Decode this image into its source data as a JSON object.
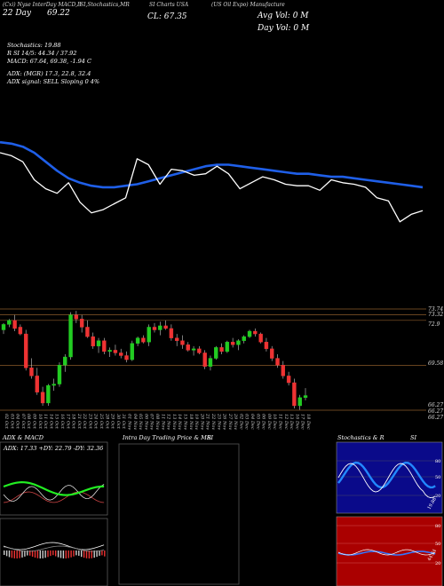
{
  "header": {
    "line1": [
      "(Cxi) Nyse InterDay MACD,B",
      "SI,Stochastics,MR",
      "SI Charts USA",
      "(US Oil Expo) Manufacture"
    ],
    "date_label": "22 Day",
    "price_label": "69.22",
    "close_label": "CL: 67.35",
    "avg_vol": "Avg Vol: 0   M",
    "day_vol": "Day Vol: 0   M"
  },
  "indicators": {
    "stochastics": "Stochastics: 19.88",
    "rsi": "R                    SI 14/5: 44.34  / 37.92",
    "macd": "MACD: 67.64,  69.38,  -1.94   C",
    "adx": "ADX:                    (MGR) 17.3,  22.8,  32.4",
    "adx_signal": "ADX  signal: SELL  Sloping 0 4%"
  },
  "price_axis": {
    "labels": [
      "73.74",
      "73.32",
      "72.9",
      "69.58",
      "66.27",
      "66.27",
      "66.27"
    ]
  },
  "dates": [
    "02 Oct",
    "03 Oct",
    "04 Oct",
    "07 Oct",
    "08 Oct",
    "09 Oct",
    "10 Oct",
    "11 Oct",
    "14 Oct",
    "15 Oct",
    "16 Oct",
    "17 Oct",
    "18 Oct",
    "21 Oct",
    "22 Oct",
    "23 Oct",
    "24 Oct",
    "25 Oct",
    "28 Oct",
    "29 Oct",
    "30 Oct",
    "31 Oct",
    "01 Nov",
    "04 Nov",
    "05 Nov",
    "06 Nov",
    "07 Nov",
    "08 Nov",
    "11 Nov",
    "12 Nov",
    "13 Nov",
    "14 Nov",
    "15 Nov",
    "18 Nov",
    "19 Nov",
    "20 Nov",
    "21 Nov",
    "22 Nov",
    "25 Nov",
    "26 Nov",
    "27 Nov",
    "29 Nov",
    "02 Dec",
    "03 Dec",
    "04 Dec",
    "05 Dec",
    "06 Dec",
    "09 Dec",
    "10 Dec",
    "11 Dec",
    "12 Dec",
    "13 Dec",
    "16 Dec",
    "17 Dec",
    "18 Dec"
  ],
  "panels": {
    "adx_title": "ADX  & MACD",
    "adx_values": "ADX: 17.33  +DY: 22.79  -DY: 32.36",
    "intra_title": "Intra  Day Trading Price  & MR",
    "intra_si": "SI",
    "stoch_title": "Stochastics & R",
    "stoch_si": "SI",
    "stoch_ticks": [
      "80",
      "50",
      "20"
    ],
    "stoch_value": "19.88",
    "rsi_ticks": [
      "80",
      "50",
      "20"
    ],
    "rsi_value": "44.34"
  },
  "colors": {
    "background": "#000000",
    "ma_line": "#1f5fe8",
    "price_line": "#ffffff",
    "up_candle": "#22cc22",
    "down_candle": "#ee3333",
    "rsi_panel": "#aa0000",
    "adx_green": "#22ee22",
    "axis_line": "#8a5a2a"
  },
  "chart_data": [
    {
      "type": "line",
      "title": "",
      "series": [
        {
          "values": [
            71.9,
            71.8,
            71.6,
            71.2,
            70.6,
            70.0,
            69.5,
            69.2,
            69.0,
            68.9,
            68.9,
            69.0,
            69.1,
            69.3,
            69.5,
            69.7,
            69.9,
            70.1,
            70.3,
            70.4,
            70.4,
            70.3,
            70.2,
            70.1,
            70.0,
            69.9,
            69.8,
            69.8,
            69.7,
            69.6,
            69.6,
            69.5,
            69.4,
            69.3,
            69.2,
            69.1,
            69.0,
            68.9
          ]
        },
        {
          "values": [
            71.2,
            71.0,
            70.6,
            69.4,
            68.8,
            68.5,
            69.2,
            67.9,
            67.2,
            67.4,
            67.8,
            68.2,
            70.8,
            70.4,
            69.1,
            70.1,
            70.0,
            69.7,
            69.8,
            70.3,
            69.8,
            68.8,
            69.2,
            69.6,
            69.4,
            69.1,
            69.0,
            69.0,
            68.7,
            69.4,
            69.2,
            69.1,
            68.9,
            68.2,
            68.0,
            66.6,
            67.1,
            67.35
          ]
        }
      ]
    },
    {
      "type": "bar",
      "title": "",
      "categories": [
        "02 Oct",
        "03 Oct",
        "04 Oct",
        "07 Oct",
        "08 Oct",
        "09 Oct",
        "10 Oct",
        "11 Oct",
        "14 Oct",
        "15 Oct",
        "16 Oct",
        "17 Oct",
        "18 Oct",
        "21 Oct",
        "22 Oct",
        "23 Oct",
        "24 Oct",
        "25 Oct",
        "28 Oct",
        "29 Oct",
        "30 Oct",
        "31 Oct",
        "01 Nov",
        "04 Nov",
        "05 Nov",
        "06 Nov",
        "07 Nov",
        "08 Nov",
        "11 Nov",
        "12 Nov",
        "13 Nov",
        "14 Nov",
        "15 Nov",
        "18 Nov",
        "19 Nov",
        "20 Nov",
        "21 Nov",
        "22 Nov",
        "25 Nov",
        "26 Nov",
        "27 Nov",
        "29 Nov",
        "02 Dec",
        "03 Dec",
        "04 Dec",
        "05 Dec",
        "06 Dec",
        "09 Dec",
        "10 Dec",
        "11 Dec",
        "12 Dec",
        "13 Dec",
        "16 Dec",
        "17 Dec",
        "18 Dec"
      ],
      "ohlc": [
        [
          72.2,
          72.7,
          71.9,
          72.6
        ],
        [
          72.6,
          73.0,
          72.4,
          72.9
        ],
        [
          72.9,
          73.3,
          72.1,
          72.3
        ],
        [
          72.4,
          72.6,
          71.8,
          71.9
        ],
        [
          71.9,
          72.2,
          69.2,
          69.4
        ],
        [
          69.4,
          70.1,
          68.6,
          68.8
        ],
        [
          68.8,
          69.4,
          67.4,
          67.6
        ],
        [
          67.6,
          68.0,
          66.6,
          66.8
        ],
        [
          66.8,
          68.2,
          66.6,
          68.1
        ],
        [
          68.1,
          68.6,
          67.7,
          68.2
        ],
        [
          68.2,
          69.8,
          68.0,
          69.6
        ],
        [
          69.6,
          70.4,
          69.1,
          70.2
        ],
        [
          70.2,
          73.5,
          70.0,
          73.3
        ],
        [
          73.3,
          73.6,
          72.7,
          73.0
        ],
        [
          73.0,
          73.3,
          72.0,
          72.4
        ],
        [
          72.4,
          72.9,
          71.6,
          71.7
        ],
        [
          71.7,
          72.0,
          70.8,
          71.0
        ],
        [
          71.0,
          71.6,
          70.5,
          71.4
        ],
        [
          71.4,
          71.6,
          70.4,
          70.6
        ],
        [
          70.6,
          70.9,
          70.2,
          70.7
        ],
        [
          70.7,
          71.1,
          70.3,
          70.5
        ],
        [
          70.5,
          70.8,
          70.1,
          70.3
        ],
        [
          70.3,
          70.6,
          69.8,
          70.0
        ],
        [
          70.0,
          71.4,
          69.9,
          71.2
        ],
        [
          71.2,
          71.7,
          71.0,
          71.6
        ],
        [
          71.6,
          71.8,
          71.2,
          71.3
        ],
        [
          71.3,
          72.6,
          71.0,
          72.4
        ],
        [
          72.4,
          72.7,
          72.0,
          72.2
        ],
        [
          72.2,
          72.8,
          71.8,
          72.5
        ],
        [
          72.5,
          72.9,
          72.2,
          72.3
        ],
        [
          72.3,
          72.6,
          71.4,
          71.6
        ],
        [
          71.6,
          71.9,
          71.0,
          71.4
        ],
        [
          71.4,
          71.8,
          70.8,
          71.1
        ],
        [
          71.1,
          71.3,
          70.6,
          70.7
        ],
        [
          70.7,
          71.0,
          70.3,
          70.8
        ],
        [
          70.8,
          71.0,
          70.4,
          70.5
        ],
        [
          70.5,
          70.7,
          69.3,
          69.5
        ],
        [
          69.5,
          70.3,
          69.2,
          70.1
        ],
        [
          70.1,
          71.0,
          70.0,
          70.9
        ],
        [
          70.9,
          71.2,
          70.4,
          70.6
        ],
        [
          70.6,
          71.4,
          70.5,
          71.3
        ],
        [
          71.3,
          71.6,
          70.9,
          71.1
        ],
        [
          71.1,
          71.5,
          70.7,
          71.4
        ],
        [
          71.4,
          71.8,
          71.2,
          71.7
        ],
        [
          71.7,
          72.2,
          71.6,
          72.1
        ],
        [
          72.1,
          72.3,
          71.7,
          71.9
        ],
        [
          71.9,
          72.0,
          71.2,
          71.3
        ],
        [
          71.3,
          71.6,
          70.6,
          70.8
        ],
        [
          70.8,
          71.0,
          69.9,
          70.1
        ],
        [
          70.1,
          70.4,
          69.4,
          69.6
        ],
        [
          69.6,
          69.9,
          68.6,
          68.8
        ],
        [
          68.8,
          69.1,
          68.1,
          68.3
        ],
        [
          68.3,
          68.6,
          66.4,
          66.6
        ],
        [
          66.6,
          67.4,
          66.3,
          67.2
        ],
        [
          67.2,
          67.9,
          67.0,
          67.35
        ]
      ],
      "ylim": [
        66.27,
        73.74
      ]
    }
  ]
}
